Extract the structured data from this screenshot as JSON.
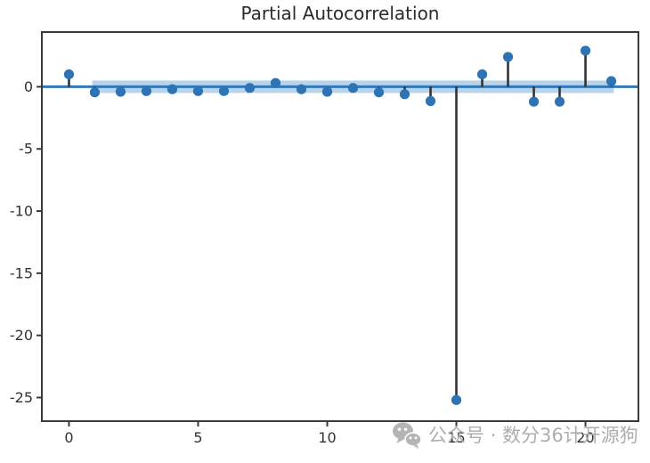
{
  "chart_data": {
    "type": "scatter",
    "subtype": "stem-pacf",
    "title": "Partial Autocorrelation",
    "xlabel": "",
    "ylabel": "",
    "x": [
      0,
      1,
      2,
      3,
      4,
      5,
      6,
      7,
      8,
      9,
      10,
      11,
      12,
      13,
      14,
      15,
      16,
      17,
      18,
      19,
      20,
      21
    ],
    "values": [
      1.0,
      -0.45,
      -0.4,
      -0.35,
      -0.2,
      -0.35,
      -0.35,
      -0.1,
      0.3,
      -0.2,
      -0.4,
      -0.1,
      -0.45,
      -0.6,
      -1.15,
      -25.2,
      1.0,
      2.4,
      -1.2,
      -1.2,
      2.9,
      0.45
    ],
    "xticks": [
      0,
      5,
      10,
      15,
      20
    ],
    "yticks": [
      0,
      -5,
      -10,
      -15,
      -20,
      -25
    ],
    "xlim": [
      -1.05,
      22.05
    ],
    "ylim": [
      -26.9,
      4.4
    ],
    "grid": false,
    "legend": null,
    "zero_line_y": 0,
    "confidence_band": {
      "x_start": 0.9,
      "x_end": 21.1,
      "lower": -0.5,
      "upper": 0.5
    },
    "colors": {
      "marker": "#2e74b5",
      "stem": "#333333",
      "band": "#b9d3ea",
      "zero_line": "#3279b7",
      "spine": "#3a3a3a",
      "tick_label": "#333333",
      "title": "#2b2b2b"
    }
  },
  "watermark": {
    "icon": "wechat-icon",
    "text": "公众号 · 数分36计开源狗",
    "color": "#aeaeae"
  }
}
